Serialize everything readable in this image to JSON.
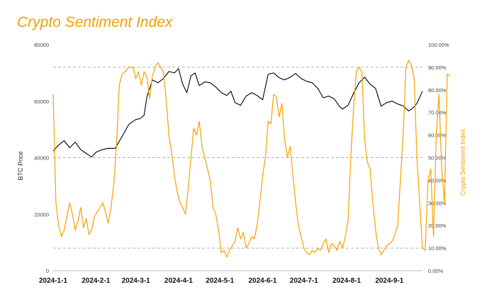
{
  "chart_data": {
    "type": "line",
    "title": "Crypto Sentiment Index",
    "ylabel": "BTC Price",
    "y2label": "Crypto Sentiment Index",
    "ylim": [
      0,
      80000
    ],
    "y2lim": [
      0,
      100
    ],
    "left_ticks": [
      "0",
      "20000",
      "40000",
      "60000",
      "80000"
    ],
    "right_ticks": [
      "0.00%",
      "10.00%",
      "20.00%",
      "30.00%",
      "40.00%",
      "50.00%",
      "60.00%",
      "70.00%",
      "80.00%",
      "90.00%",
      "100.00%"
    ],
    "x_ticks": [
      "2024-1-1",
      "2024-2-1",
      "2024-3-1",
      "2024-4-1",
      "2024-5-1",
      "2024-6-1",
      "2024-7-1",
      "2024-8-1",
      "2024-9-1"
    ],
    "x_domain_days": [
      0,
      268
    ],
    "reference_lines_y2": [
      10,
      50,
      90
    ],
    "colors": {
      "btc": "#000000",
      "sentiment": "#f5a000",
      "title": "#f5a000",
      "grid": "#999999"
    },
    "series": [
      {
        "name": "BTC Price",
        "axis": "left",
        "points": [
          [
            0,
            42300
          ],
          [
            4,
            44500
          ],
          [
            8,
            46000
          ],
          [
            12,
            43500
          ],
          [
            16,
            45500
          ],
          [
            20,
            42800
          ],
          [
            24,
            41500
          ],
          [
            28,
            40200
          ],
          [
            31,
            41900
          ],
          [
            36,
            42900
          ],
          [
            40,
            43300
          ],
          [
            45,
            43300
          ],
          [
            50,
            47500
          ],
          [
            55,
            51800
          ],
          [
            60,
            53500
          ],
          [
            63,
            53800
          ],
          [
            66,
            55000
          ],
          [
            68,
            61500
          ],
          [
            72,
            67500
          ],
          [
            76,
            66500
          ],
          [
            80,
            68000
          ],
          [
            84,
            70500
          ],
          [
            88,
            70000
          ],
          [
            91,
            71500
          ],
          [
            94,
            66000
          ],
          [
            97,
            63000
          ],
          [
            100,
            69000
          ],
          [
            103,
            70000
          ],
          [
            106,
            65500
          ],
          [
            110,
            66800
          ],
          [
            114,
            66500
          ],
          [
            118,
            65000
          ],
          [
            122,
            63000
          ],
          [
            126,
            62000
          ],
          [
            129,
            63500
          ],
          [
            132,
            59500
          ],
          [
            136,
            58500
          ],
          [
            140,
            61800
          ],
          [
            144,
            63000
          ],
          [
            148,
            62000
          ],
          [
            152,
            60500
          ],
          [
            156,
            69500
          ],
          [
            160,
            70000
          ],
          [
            164,
            68300
          ],
          [
            168,
            67500
          ],
          [
            172,
            68500
          ],
          [
            176,
            69800
          ],
          [
            180,
            68000
          ],
          [
            184,
            67000
          ],
          [
            188,
            66500
          ],
          [
            192,
            64500
          ],
          [
            196,
            61200
          ],
          [
            200,
            61800
          ],
          [
            204,
            60800
          ],
          [
            208,
            58000
          ],
          [
            210,
            57200
          ],
          [
            214,
            58500
          ],
          [
            218,
            62800
          ],
          [
            222,
            66500
          ],
          [
            226,
            68500
          ],
          [
            230,
            66000
          ],
          [
            234,
            64500
          ],
          [
            238,
            58200
          ],
          [
            242,
            59500
          ],
          [
            246,
            60000
          ],
          [
            250,
            59000
          ],
          [
            254,
            58300
          ],
          [
            258,
            56500
          ],
          [
            261,
            57500
          ],
          [
            264,
            59200
          ],
          [
            268,
            63500
          ]
        ]
      },
      {
        "name": "Crypto Sentiment Index",
        "axis": "right",
        "points": [
          [
            0,
            78
          ],
          [
            2,
            30
          ],
          [
            4,
            20
          ],
          [
            6,
            15
          ],
          [
            8,
            18
          ],
          [
            10,
            24
          ],
          [
            12,
            30
          ],
          [
            14,
            25
          ],
          [
            16,
            18
          ],
          [
            18,
            22
          ],
          [
            20,
            28
          ],
          [
            22,
            19
          ],
          [
            24,
            23
          ],
          [
            26,
            16
          ],
          [
            28,
            18
          ],
          [
            30,
            24
          ],
          [
            33,
            27
          ],
          [
            36,
            30
          ],
          [
            38,
            26
          ],
          [
            40,
            21
          ],
          [
            42,
            28
          ],
          [
            44,
            38
          ],
          [
            46,
            56
          ],
          [
            48,
            82
          ],
          [
            50,
            87
          ],
          [
            52,
            88
          ],
          [
            55,
            90
          ],
          [
            58,
            90
          ],
          [
            60,
            85
          ],
          [
            62,
            88
          ],
          [
            64,
            82
          ],
          [
            66,
            88
          ],
          [
            68,
            86
          ],
          [
            70,
            76
          ],
          [
            72,
            86
          ],
          [
            74,
            90
          ],
          [
            76,
            92
          ],
          [
            78,
            90
          ],
          [
            80,
            88
          ],
          [
            82,
            76
          ],
          [
            84,
            60
          ],
          [
            86,
            52
          ],
          [
            88,
            42
          ],
          [
            90,
            35
          ],
          [
            92,
            30
          ],
          [
            94,
            28
          ],
          [
            96,
            25
          ],
          [
            98,
            36
          ],
          [
            100,
            50
          ],
          [
            102,
            63
          ],
          [
            104,
            60
          ],
          [
            106,
            66
          ],
          [
            108,
            55
          ],
          [
            110,
            50
          ],
          [
            112,
            45
          ],
          [
            114,
            40
          ],
          [
            116,
            28
          ],
          [
            118,
            25
          ],
          [
            120,
            18
          ],
          [
            122,
            8
          ],
          [
            124,
            9
          ],
          [
            126,
            6
          ],
          [
            128,
            9
          ],
          [
            130,
            11
          ],
          [
            132,
            13
          ],
          [
            134,
            19
          ],
          [
            136,
            14
          ],
          [
            138,
            17
          ],
          [
            140,
            10
          ],
          [
            142,
            12
          ],
          [
            144,
            15
          ],
          [
            146,
            14
          ],
          [
            148,
            20
          ],
          [
            150,
            30
          ],
          [
            152,
            42
          ],
          [
            154,
            50
          ],
          [
            156,
            66
          ],
          [
            158,
            65
          ],
          [
            160,
            78
          ],
          [
            162,
            77
          ],
          [
            164,
            68
          ],
          [
            166,
            74
          ],
          [
            168,
            58
          ],
          [
            170,
            50
          ],
          [
            172,
            55
          ],
          [
            174,
            42
          ],
          [
            176,
            30
          ],
          [
            178,
            20
          ],
          [
            180,
            15
          ],
          [
            182,
            10
          ],
          [
            184,
            8
          ],
          [
            186,
            7
          ],
          [
            188,
            9
          ],
          [
            190,
            8
          ],
          [
            192,
            10
          ],
          [
            194,
            9
          ],
          [
            196,
            12
          ],
          [
            198,
            14
          ],
          [
            200,
            8
          ],
          [
            202,
            12
          ],
          [
            204,
            11
          ],
          [
            206,
            9
          ],
          [
            208,
            13
          ],
          [
            210,
            10
          ],
          [
            212,
            15
          ],
          [
            214,
            22
          ],
          [
            216,
            50
          ],
          [
            218,
            72
          ],
          [
            220,
            88
          ],
          [
            222,
            90
          ],
          [
            224,
            88
          ],
          [
            226,
            58
          ],
          [
            228,
            48
          ],
          [
            230,
            45
          ],
          [
            232,
            30
          ],
          [
            234,
            18
          ],
          [
            236,
            10
          ],
          [
            238,
            7
          ],
          [
            240,
            9
          ],
          [
            242,
            11
          ],
          [
            244,
            12
          ],
          [
            246,
            13
          ],
          [
            248,
            16
          ],
          [
            250,
            20
          ],
          [
            252,
            40
          ],
          [
            254,
            60
          ],
          [
            256,
            90
          ],
          [
            258,
            93
          ],
          [
            260,
            91
          ],
          [
            262,
            85
          ],
          [
            264,
            50
          ],
          [
            266,
            30
          ],
          [
            268,
            10
          ],
          [
            270,
            9
          ],
          [
            272,
            40
          ],
          [
            274,
            45
          ],
          [
            276,
            15
          ],
          [
            278,
            60
          ],
          [
            280,
            78
          ],
          [
            282,
            45
          ],
          [
            284,
            30
          ],
          [
            286,
            87
          ],
          [
            288,
            86
          ]
        ]
      }
    ]
  }
}
